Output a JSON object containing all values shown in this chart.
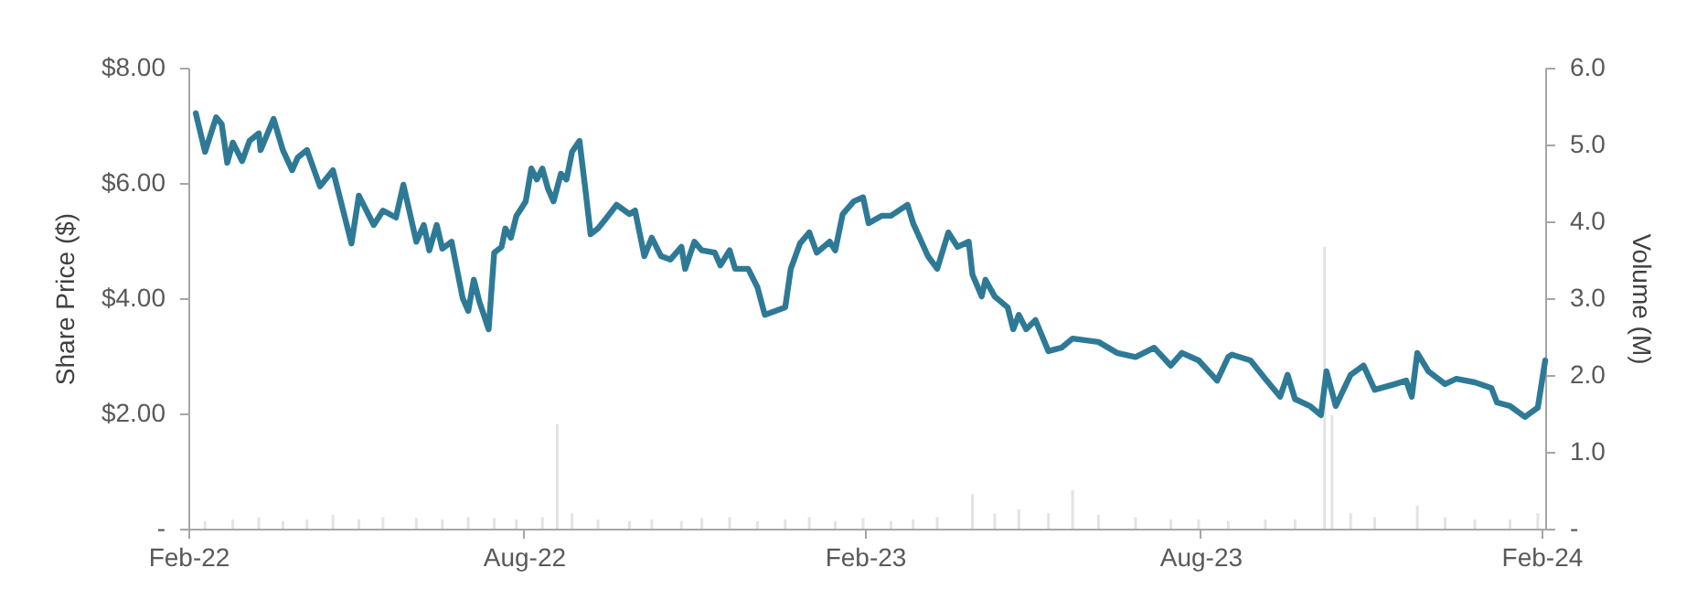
{
  "chart_data": {
    "type": "line",
    "ylabel": "Share Price ($)",
    "y2label": "Volume (M)",
    "xlim": [
      "2022-02-01",
      "2024-02-03"
    ],
    "xticks": [
      {
        "value": "2022-02-01",
        "label": "Feb-22"
      },
      {
        "value": "2022-08-01",
        "label": "Aug-22"
      },
      {
        "value": "2023-02-01",
        "label": "Feb-23"
      },
      {
        "value": "2023-08-01",
        "label": "Aug-23"
      },
      {
        "value": "2024-02-01",
        "label": "Feb-24"
      }
    ],
    "ylim": [
      0,
      8
    ],
    "yticks": [
      {
        "value": 0,
        "label": "-"
      },
      {
        "value": 2,
        "label": "$2.00"
      },
      {
        "value": 4,
        "label": "$4.00"
      },
      {
        "value": 6,
        "label": "$6.00"
      },
      {
        "value": 8,
        "label": "$8.00"
      }
    ],
    "y2lim": [
      0,
      6
    ],
    "y2ticks": [
      {
        "value": 0,
        "label": "-"
      },
      {
        "value": 1,
        "label": "1.0"
      },
      {
        "value": 2,
        "label": "2.0"
      },
      {
        "value": 3,
        "label": "3.0"
      },
      {
        "value": 4,
        "label": "4.0"
      },
      {
        "value": 5,
        "label": "5.0"
      },
      {
        "value": 6,
        "label": "6.0"
      }
    ],
    "grid": false,
    "series": [
      {
        "type": "bar",
        "axis": "y2",
        "color": "#e3e3e3",
        "x": [
          "2022-02-10",
          "2022-02-25",
          "2022-03-11",
          "2022-03-24",
          "2022-04-06",
          "2022-04-20",
          "2022-05-04",
          "2022-05-17",
          "2022-06-04",
          "2022-06-18",
          "2022-07-02",
          "2022-07-16",
          "2022-07-28",
          "2022-08-11",
          "2022-08-19",
          "2022-08-27",
          "2022-09-10",
          "2022-09-27",
          "2022-10-09",
          "2022-10-25",
          "2022-11-05",
          "2022-11-20",
          "2022-12-05",
          "2022-12-20",
          "2023-01-02",
          "2023-01-16",
          "2023-01-31",
          "2023-02-15",
          "2023-02-27",
          "2023-03-12",
          "2023-03-31",
          "2023-04-12",
          "2023-04-25",
          "2023-05-11",
          "2023-05-24",
          "2023-06-07",
          "2023-06-27",
          "2023-07-16",
          "2023-07-31",
          "2023-08-16",
          "2023-09-05",
          "2023-09-21",
          "2023-10-07",
          "2023-10-11",
          "2023-10-21",
          "2023-11-03",
          "2023-11-26",
          "2023-12-11",
          "2023-12-27",
          "2024-01-15",
          "2024-01-30"
        ],
        "values": [
          0.1,
          0.12,
          0.15,
          0.1,
          0.12,
          0.18,
          0.12,
          0.15,
          0.14,
          0.12,
          0.15,
          0.14,
          0.12,
          0.15,
          1.36,
          0.2,
          0.12,
          0.1,
          0.12,
          0.1,
          0.14,
          0.15,
          0.1,
          0.12,
          0.15,
          0.1,
          0.14,
          0.1,
          0.12,
          0.15,
          0.45,
          0.2,
          0.25,
          0.2,
          0.5,
          0.18,
          0.15,
          0.12,
          0.12,
          0.1,
          0.12,
          0.12,
          3.67,
          1.48,
          0.2,
          0.15,
          0.3,
          0.15,
          0.12,
          0.12,
          0.2
        ]
      },
      {
        "color": "#2e7a96",
        "x": [
          "2022-02-05",
          "2022-02-10",
          "2022-02-16",
          "2022-02-19",
          "2022-02-22",
          "2022-02-25",
          "2022-03-02",
          "2022-03-06",
          "2022-03-11",
          "2022-03-12",
          "2022-03-19",
          "2022-03-24",
          "2022-03-29",
          "2022-04-01",
          "2022-04-06",
          "2022-04-13",
          "2022-04-20",
          "2022-04-30",
          "2022-05-04",
          "2022-05-12",
          "2022-05-17",
          "2022-05-24",
          "2022-05-28",
          "2022-06-04",
          "2022-06-08",
          "2022-06-11",
          "2022-06-15",
          "2022-06-18",
          "2022-06-23",
          "2022-06-29",
          "2022-07-02",
          "2022-07-05",
          "2022-07-08",
          "2022-07-13",
          "2022-07-16",
          "2022-07-20",
          "2022-07-22",
          "2022-07-25",
          "2022-07-28",
          "2022-08-02",
          "2022-08-05",
          "2022-08-08",
          "2022-08-11",
          "2022-08-14",
          "2022-08-17",
          "2022-08-21",
          "2022-08-24",
          "2022-08-27",
          "2022-08-31",
          "2022-09-03",
          "2022-09-06",
          "2022-09-10",
          "2022-09-14",
          "2022-09-20",
          "2022-09-27",
          "2022-09-30",
          "2022-10-05",
          "2022-10-09",
          "2022-10-14",
          "2022-10-19",
          "2022-10-25",
          "2022-10-27",
          "2022-11-01",
          "2022-11-05",
          "2022-11-12",
          "2022-11-15",
          "2022-11-20",
          "2022-11-23",
          "2022-11-30",
          "2022-12-05",
          "2022-12-09",
          "2022-12-15",
          "2022-12-20",
          "2022-12-23",
          "2022-12-28",
          "2023-01-02",
          "2023-01-06",
          "2023-01-13",
          "2023-01-16",
          "2023-01-20",
          "2023-01-26",
          "2023-01-31",
          "2023-02-03",
          "2023-02-10",
          "2023-02-15",
          "2023-02-24",
          "2023-02-27",
          "2023-03-07",
          "2023-03-12",
          "2023-03-18",
          "2023-03-23",
          "2023-03-29",
          "2023-03-31",
          "2023-04-05",
          "2023-04-07",
          "2023-04-12",
          "2023-04-19",
          "2023-04-22",
          "2023-04-25",
          "2023-04-29",
          "2023-05-04",
          "2023-05-11",
          "2023-05-18",
          "2023-05-24",
          "2023-06-07",
          "2023-06-17",
          "2023-06-27",
          "2023-07-07",
          "2023-07-16",
          "2023-07-22",
          "2023-07-31",
          "2023-08-10",
          "2023-08-16",
          "2023-08-18",
          "2023-08-28",
          "2023-09-05",
          "2023-09-13",
          "2023-09-17",
          "2023-09-21",
          "2023-09-29",
          "2023-10-05",
          "2023-10-08",
          "2023-10-13",
          "2023-10-21",
          "2023-10-28",
          "2023-11-03",
          "2023-11-14",
          "2023-11-20",
          "2023-11-23",
          "2023-11-26",
          "2023-12-02",
          "2023-12-11",
          "2023-12-17",
          "2023-12-27",
          "2024-01-05",
          "2024-01-08",
          "2024-01-15",
          "2024-01-23",
          "2024-01-30",
          "2024-02-03"
        ],
        "values": [
          7.21,
          6.54,
          7.14,
          7.02,
          6.35,
          6.7,
          6.38,
          6.73,
          6.86,
          6.57,
          7.11,
          6.57,
          6.22,
          6.44,
          6.57,
          5.94,
          6.22,
          4.95,
          5.78,
          5.27,
          5.52,
          5.4,
          5.97,
          4.98,
          5.27,
          4.83,
          5.27,
          4.86,
          4.98,
          4.0,
          3.78,
          4.32,
          3.94,
          3.46,
          4.79,
          4.89,
          5.21,
          5.05,
          5.43,
          5.68,
          6.25,
          6.06,
          6.25,
          5.9,
          5.68,
          6.16,
          6.06,
          6.54,
          6.73,
          5.94,
          5.11,
          5.21,
          5.37,
          5.62,
          5.46,
          5.52,
          4.73,
          5.05,
          4.73,
          4.67,
          4.89,
          4.51,
          4.98,
          4.83,
          4.79,
          4.57,
          4.83,
          4.51,
          4.51,
          4.19,
          3.71,
          3.78,
          3.84,
          4.51,
          4.95,
          5.14,
          4.79,
          4.98,
          4.83,
          5.46,
          5.68,
          5.75,
          5.3,
          5.43,
          5.43,
          5.62,
          5.3,
          4.73,
          4.51,
          5.14,
          4.89,
          4.98,
          4.41,
          4.03,
          4.32,
          4.03,
          3.84,
          3.46,
          3.71,
          3.46,
          3.62,
          3.08,
          3.14,
          3.3,
          3.24,
          3.05,
          2.98,
          3.14,
          2.83,
          3.05,
          2.92,
          2.57,
          2.98,
          3.02,
          2.92,
          2.6,
          2.29,
          2.67,
          2.25,
          2.13,
          1.97,
          2.73,
          2.13,
          2.67,
          2.83,
          2.41,
          2.51,
          2.57,
          2.29,
          3.05,
          2.73,
          2.51,
          2.6,
          2.54,
          2.44,
          2.19,
          2.13,
          1.94,
          2.1,
          2.92
        ]
      }
    ]
  }
}
